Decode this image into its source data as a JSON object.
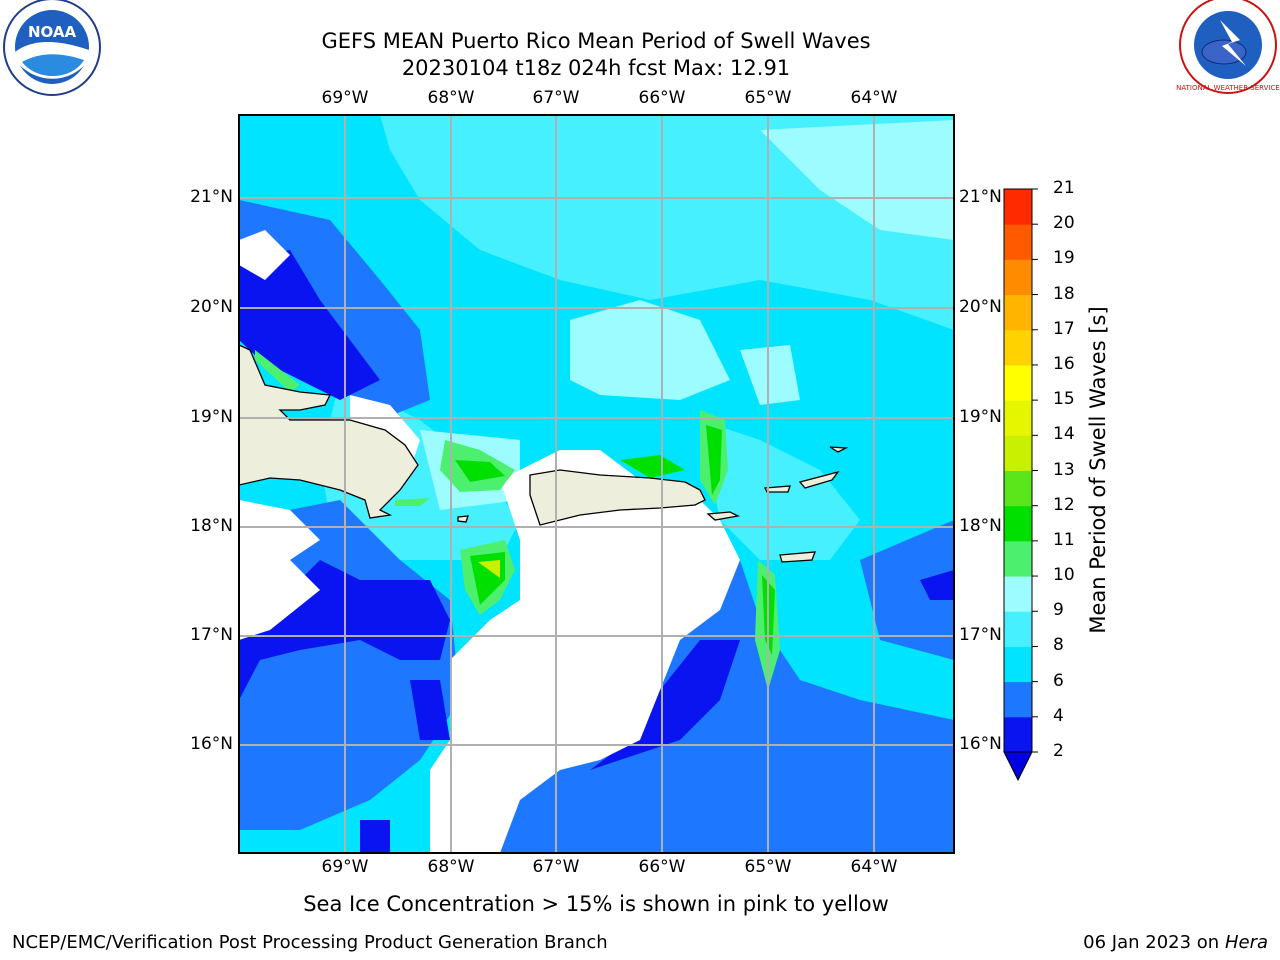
{
  "title_line1": "GEFS MEAN Puerto Rico Mean Period of Swell Waves",
  "title_line2": "20230104 t18z 024h fcst   Max: 12.91",
  "lon_labels": [
    "69°W",
    "68°W",
    "67°W",
    "66°W",
    "65°W",
    "64°W"
  ],
  "lat_labels": [
    "21°N",
    "20°N",
    "19°N",
    "18°N",
    "17°N",
    "16°N"
  ],
  "colorbar": {
    "label": "Mean Period of Swell Waves [s]",
    "ticks": [
      "2",
      "4",
      "6",
      "8",
      "9",
      "10",
      "11",
      "12",
      "13",
      "14",
      "15",
      "16",
      "17",
      "18",
      "19",
      "20",
      "21"
    ],
    "colors": [
      "#0a14f0",
      "#1e78ff",
      "#00e4ff",
      "#46f0ff",
      "#9cfcff",
      "#4cf06e",
      "#00e000",
      "#5ae61a",
      "#c8f000",
      "#e6f500",
      "#ffff00",
      "#ffd200",
      "#ffb400",
      "#ff8c00",
      "#ff5a00",
      "#ff2a00"
    ],
    "extend_color": "#0000e0"
  },
  "map": {
    "land_color": "#eeeedc",
    "grid_color": "#b0b0b0"
  },
  "note": "Sea Ice Concentration > 15% is shown in pink to yellow",
  "footer_left": "NCEP/EMC/Verification Post Processing Product Generation Branch",
  "footer_date": "06 Jan 2023 on ",
  "footer_host": "Hera",
  "logos": {
    "noaa_text": "NOAA",
    "nws_ring_text": "NATIONAL WEATHER SERVICE"
  }
}
